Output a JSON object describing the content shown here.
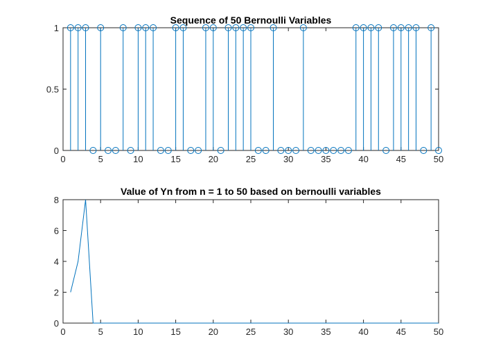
{
  "chart_data": [
    {
      "type": "stem",
      "title": "Sequence of 50 Bernoulli Variables",
      "xlim": [
        0,
        50
      ],
      "ylim": [
        0,
        1
      ],
      "xticks": [
        0,
        5,
        10,
        15,
        20,
        25,
        30,
        35,
        40,
        45,
        50
      ],
      "yticks": [
        0,
        0.5,
        1
      ],
      "grid": false,
      "color": "#0072BD",
      "series": [
        {
          "x": [
            1,
            2,
            3,
            4,
            5,
            6,
            7,
            8,
            9,
            10,
            11,
            12,
            13,
            14,
            15,
            16,
            17,
            18,
            19,
            20,
            21,
            22,
            23,
            24,
            25,
            26,
            27,
            28,
            29,
            30,
            31,
            32,
            33,
            34,
            35,
            36,
            37,
            38,
            39,
            40,
            41,
            42,
            43,
            44,
            45,
            46,
            47,
            48,
            49,
            50
          ],
          "values": [
            1,
            1,
            1,
            0,
            1,
            0,
            0,
            1,
            0,
            1,
            1,
            1,
            0,
            0,
            1,
            1,
            0,
            0,
            1,
            1,
            0,
            1,
            1,
            1,
            1,
            0,
            0,
            1,
            0,
            0,
            0,
            1,
            0,
            0,
            0,
            0,
            0,
            0,
            1,
            1,
            1,
            1,
            0,
            1,
            1,
            1,
            1,
            0,
            1,
            0
          ]
        }
      ]
    },
    {
      "type": "line",
      "title": "Value of Yn from n = 1 to 50 based on bernoulli variables",
      "xlim": [
        0,
        50
      ],
      "ylim": [
        0,
        8
      ],
      "xticks": [
        0,
        5,
        10,
        15,
        20,
        25,
        30,
        35,
        40,
        45,
        50
      ],
      "yticks": [
        0,
        2,
        4,
        6,
        8
      ],
      "grid": false,
      "color": "#0072BD",
      "series": [
        {
          "x": [
            1,
            2,
            3,
            4,
            5,
            6,
            7,
            8,
            9,
            10,
            11,
            12,
            13,
            14,
            15,
            16,
            17,
            18,
            19,
            20,
            21,
            22,
            23,
            24,
            25,
            26,
            27,
            28,
            29,
            30,
            31,
            32,
            33,
            34,
            35,
            36,
            37,
            38,
            39,
            40,
            41,
            42,
            43,
            44,
            45,
            46,
            47,
            48,
            49,
            50
          ],
          "values": [
            2,
            4,
            8,
            0,
            0,
            0,
            0,
            0,
            0,
            0,
            0,
            0,
            0,
            0,
            0,
            0,
            0,
            0,
            0,
            0,
            0,
            0,
            0,
            0,
            0,
            0,
            0,
            0,
            0,
            0,
            0,
            0,
            0,
            0,
            0,
            0,
            0,
            0,
            0,
            0,
            0,
            0,
            0,
            0,
            0,
            0,
            0,
            0,
            0,
            0
          ]
        }
      ]
    }
  ]
}
